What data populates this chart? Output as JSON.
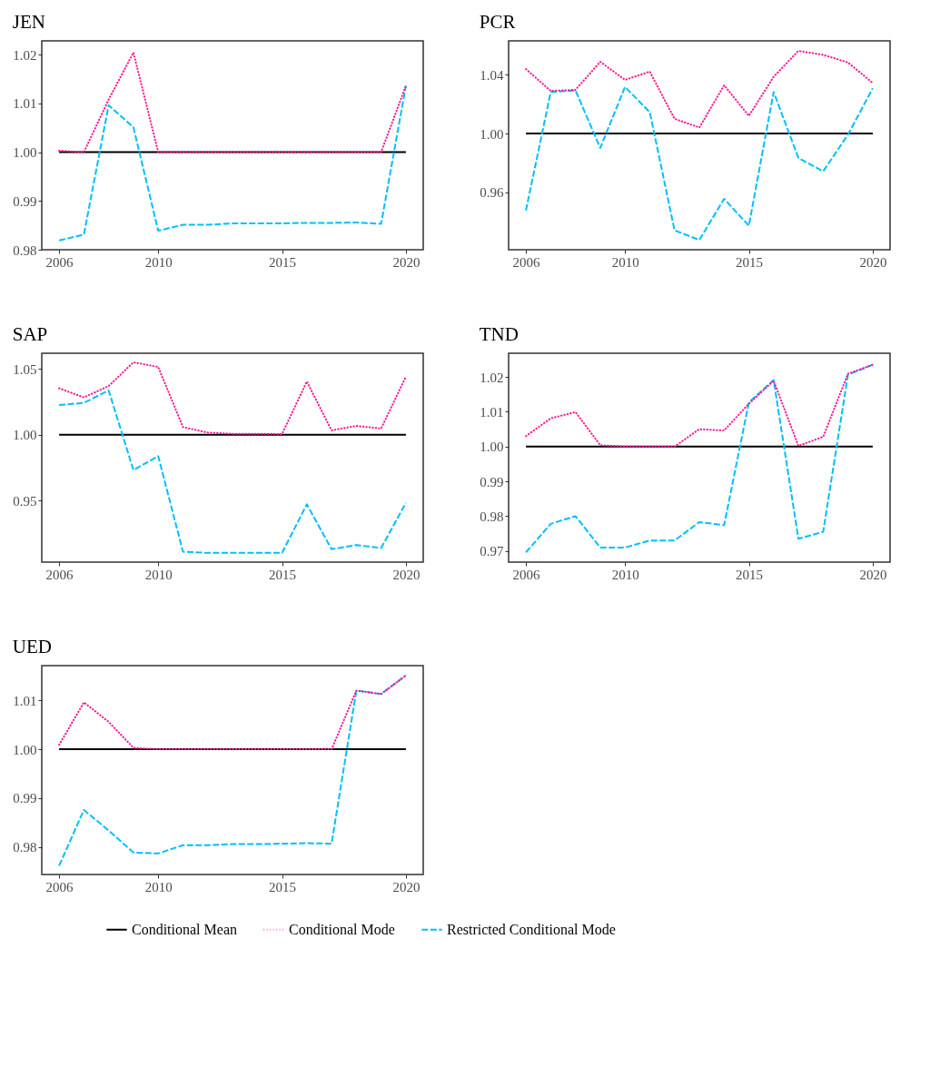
{
  "chart_data": [
    {
      "type": "line",
      "title": "JEN",
      "x": [
        2006,
        2007,
        2008,
        2009,
        2010,
        2011,
        2012,
        2013,
        2014,
        2015,
        2016,
        2017,
        2018,
        2019,
        2020
      ],
      "xlim": [
        2005.3,
        2020.7
      ],
      "xticks": [
        2006,
        2010,
        2015,
        2020
      ],
      "ylim": [
        0.98,
        1.0228
      ],
      "yticks": [
        {
          "value": 0.98,
          "label": "0.98"
        },
        {
          "value": 0.99,
          "label": "0.99"
        },
        {
          "value": 1,
          "label": "1.00"
        },
        {
          "value": 1.01,
          "label": "1.01"
        },
        {
          "value": 1.02,
          "label": "1.02"
        }
      ],
      "grid": false,
      "legend": "bottom",
      "series": [
        {
          "name": "Conditional Mean",
          "color": "#000000",
          "line_style": "solid",
          "values": [
            1,
            1,
            1,
            1,
            1,
            1,
            1,
            1,
            1,
            1,
            1,
            1,
            1,
            1,
            1
          ]
        },
        {
          "name": "Conditional Mode",
          "color": "#ff1493",
          "line_style": "dotted",
          "values": [
            1.0003,
            1.0,
            1.0108,
            1.0204,
            1.0,
            1.0,
            1.0,
            1.0,
            1.0,
            1.0,
            1.0,
            1.0,
            1.0,
            1.0,
            1.0136
          ]
        },
        {
          "name": "Restricted Conditional Mode",
          "color": "#00bfff",
          "line_style": "dashed",
          "values": [
            0.9819,
            0.9831,
            1.0096,
            1.0051,
            0.9839,
            0.9851,
            0.9851,
            0.9854,
            0.9854,
            0.9854,
            0.9855,
            0.9855,
            0.9856,
            0.9853,
            1.0136
          ]
        }
      ]
    },
    {
      "type": "line",
      "title": "PCR",
      "x": [
        2006,
        2007,
        2008,
        2009,
        2010,
        2011,
        2012,
        2013,
        2014,
        2015,
        2016,
        2017,
        2018,
        2019,
        2020
      ],
      "xlim": [
        2005.3,
        2020.7
      ],
      "xticks": [
        2006,
        2010,
        2015,
        2020
      ],
      "ylim": [
        0.921,
        1.063
      ],
      "yticks": [
        {
          "value": 0.96,
          "label": "0.96"
        },
        {
          "value": 1,
          "label": "1.00"
        },
        {
          "value": 1.04,
          "label": "1.04"
        }
      ],
      "grid": false,
      "legend": "bottom",
      "series": [
        {
          "name": "Conditional Mean",
          "color": "#000000",
          "line_style": "solid",
          "values": [
            1,
            1,
            1,
            1,
            1,
            1,
            1,
            1,
            1,
            1,
            1,
            1,
            1,
            1,
            1
          ]
        },
        {
          "name": "Conditional Mode",
          "color": "#ff1493",
          "line_style": "dotted",
          "values": [
            1.0438,
            1.029,
            1.0297,
            1.0488,
            1.0365,
            1.0421,
            1.01,
            1.0041,
            1.0328,
            1.012,
            1.0386,
            1.0562,
            1.0535,
            1.0483,
            1.0344
          ]
        },
        {
          "name": "Restricted Conditional Mode",
          "color": "#00bfff",
          "line_style": "dashed",
          "values": [
            0.9477,
            1.0282,
            1.0293,
            0.9902,
            1.0317,
            1.0145,
            0.9342,
            0.9276,
            0.9556,
            0.9373,
            1.0282,
            0.9834,
            0.9743,
            0.9992,
            1.0307
          ]
        }
      ]
    },
    {
      "type": "line",
      "title": "SAP",
      "x": [
        2006,
        2007,
        2008,
        2009,
        2010,
        2011,
        2012,
        2013,
        2014,
        2015,
        2016,
        2017,
        2018,
        2019,
        2020
      ],
      "xlim": [
        2005.3,
        2020.7
      ],
      "xticks": [
        2006,
        2010,
        2015,
        2020
      ],
      "ylim": [
        0.903,
        1.062
      ],
      "yticks": [
        {
          "value": 0.95,
          "label": "0.95"
        },
        {
          "value": 1,
          "label": "1.00"
        },
        {
          "value": 1.05,
          "label": "1.05"
        }
      ],
      "grid": false,
      "legend": "bottom",
      "series": [
        {
          "name": "Conditional Mean",
          "color": "#000000",
          "line_style": "solid",
          "values": [
            1,
            1,
            1,
            1,
            1,
            1,
            1,
            1,
            1,
            1,
            1,
            1,
            1,
            1,
            1
          ]
        },
        {
          "name": "Conditional Mode",
          "color": "#ff1493",
          "line_style": "dotted",
          "values": [
            1.0353,
            1.0284,
            1.037,
            1.0551,
            1.0516,
            1.0058,
            1.0016,
            1.0007,
            1.0007,
            1.0005,
            1.0405,
            1.0033,
            1.0067,
            1.0047,
            1.0442
          ]
        },
        {
          "name": "Restricted Conditional Mode",
          "color": "#00bfff",
          "line_style": "dashed",
          "values": [
            1.0226,
            1.0242,
            1.0337,
            0.973,
            0.9837,
            0.9109,
            0.91,
            0.91,
            0.91,
            0.91,
            0.947,
            0.9128,
            0.916,
            0.9137,
            0.9481
          ]
        }
      ]
    },
    {
      "type": "line",
      "title": "TND",
      "x": [
        2006,
        2007,
        2008,
        2009,
        2010,
        2011,
        2012,
        2013,
        2014,
        2015,
        2016,
        2017,
        2018,
        2019,
        2020
      ],
      "xlim": [
        2005.3,
        2020.7
      ],
      "xticks": [
        2006,
        2010,
        2015,
        2020
      ],
      "ylim": [
        0.9668,
        1.0268
      ],
      "yticks": [
        {
          "value": 0.97,
          "label": "0.97"
        },
        {
          "value": 0.98,
          "label": "0.98"
        },
        {
          "value": 0.99,
          "label": "0.99"
        },
        {
          "value": 1,
          "label": "1.00"
        },
        {
          "value": 1.01,
          "label": "1.01"
        },
        {
          "value": 1.02,
          "label": "1.02"
        }
      ],
      "grid": false,
      "legend": "bottom",
      "series": [
        {
          "name": "Conditional Mean",
          "color": "#000000",
          "line_style": "solid",
          "values": [
            1,
            1,
            1,
            1,
            1,
            1,
            1,
            1,
            1,
            1,
            1,
            1,
            1,
            1,
            1
          ]
        },
        {
          "name": "Conditional Mode",
          "color": "#ff1493",
          "line_style": "dotted",
          "values": [
            1.003,
            1.0081,
            1.0099,
            1.0004,
            1.0,
            1.0,
            1.0,
            1.005,
            1.0046,
            1.0123,
            1.0189,
            1.0002,
            1.0028,
            1.0209,
            1.0235
          ]
        },
        {
          "name": "Restricted Conditional Mode",
          "color": "#00bfff",
          "line_style": "dashed",
          "values": [
            0.9696,
            0.9778,
            0.98,
            0.971,
            0.971,
            0.973,
            0.973,
            0.9783,
            0.9774,
            1.0127,
            1.0191,
            0.9735,
            0.9755,
            1.0206,
            1.0235
          ]
        }
      ]
    },
    {
      "type": "line",
      "title": "UED",
      "x": [
        2006,
        2007,
        2008,
        2009,
        2010,
        2011,
        2012,
        2013,
        2014,
        2015,
        2016,
        2017,
        2018,
        2019,
        2020
      ],
      "xlim": [
        2005.3,
        2020.7
      ],
      "xticks": [
        2006,
        2010,
        2015,
        2020
      ],
      "ylim": [
        0.9744,
        1.0171
      ],
      "yticks": [
        {
          "value": 0.98,
          "label": "0.98"
        },
        {
          "value": 0.99,
          "label": "0.99"
        },
        {
          "value": 1,
          "label": "1.00"
        },
        {
          "value": 1.01,
          "label": "1.01"
        }
      ],
      "grid": false,
      "legend": "bottom",
      "series": [
        {
          "name": "Conditional Mean",
          "color": "#000000",
          "line_style": "solid",
          "values": [
            1,
            1,
            1,
            1,
            1,
            1,
            1,
            1,
            1,
            1,
            1,
            1,
            1,
            1,
            1
          ]
        },
        {
          "name": "Conditional Mode",
          "color": "#ff1493",
          "line_style": "dotted",
          "values": [
            1.0009,
            1.0096,
            1.0056,
            1.0003,
            1.0,
            1.0,
            1.0,
            1.0,
            1.0,
            1.0,
            1.0,
            1.0,
            1.012,
            1.0113,
            1.0151
          ]
        },
        {
          "name": "Restricted Conditional Mode",
          "color": "#00bfff",
          "line_style": "dashed",
          "values": [
            0.9762,
            0.9876,
            0.9834,
            0.9789,
            0.9787,
            0.9804,
            0.9804,
            0.9806,
            0.9806,
            0.9807,
            0.9808,
            0.9807,
            1.012,
            1.0113,
            1.0151
          ]
        }
      ]
    }
  ]
}
